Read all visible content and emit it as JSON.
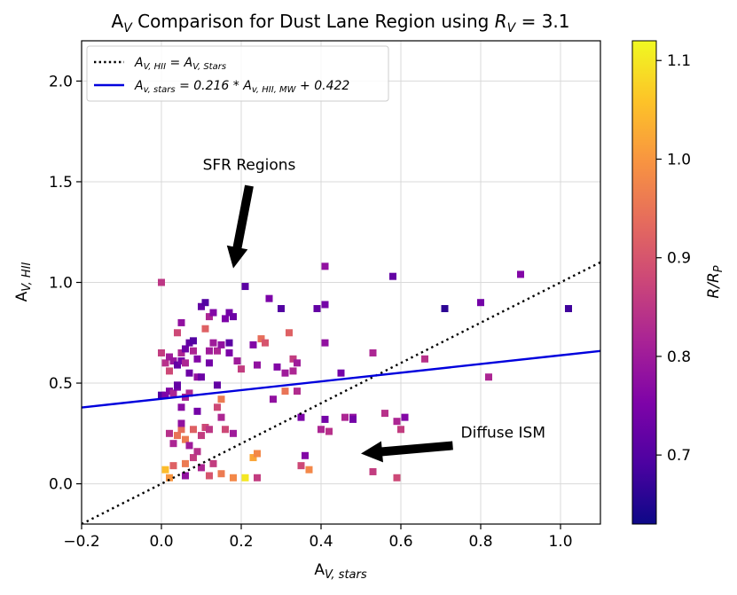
{
  "chart_data": {
    "type": "scatter",
    "title": "A_V Comparison for Dust Lane Region using R_V = 3.1",
    "title_parts": {
      "a": "A",
      "v": "V",
      "mid": " Comparison for Dust Lane Region using ",
      "r": "R",
      "rv_sub": "V",
      "eq": " = 3.1"
    },
    "xlabel": {
      "main": "A",
      "sub": "V, stars"
    },
    "ylabel": {
      "main": "A",
      "sub": "V, HII"
    },
    "xlim": [
      -0.2,
      1.1
    ],
    "ylim": [
      -0.2,
      2.2
    ],
    "xticks": [
      -0.2,
      0.0,
      0.2,
      0.4,
      0.6,
      0.8,
      1.0
    ],
    "xtick_labels": [
      "−0.2",
      "0.0",
      "0.2",
      "0.4",
      "0.6",
      "0.8",
      "1.0"
    ],
    "yticks": [
      0.0,
      0.5,
      1.0,
      1.5,
      2.0
    ],
    "ytick_labels": [
      "0.0",
      "0.5",
      "1.0",
      "1.5",
      "2.0"
    ],
    "grid": true,
    "legend_position": "top-left",
    "legend": [
      {
        "label": "A_V,HII = A_V,Stars",
        "style": "dotted",
        "color": "#000000",
        "text_main": "A",
        "text_sub": "V, HII",
        "text_eq": " = A",
        "text_sub2": "V, Stars"
      },
      {
        "label": "A_v,stars = 0.216 * A_v,HII,MW + 0.422",
        "style": "solid",
        "color": "#0000dd",
        "text_main": "A",
        "text_sub": "v, stars",
        "text_eq": " = 0.216 * A",
        "text_sub2": "v, HII, MW",
        "text_tail": " + 0.422"
      }
    ],
    "lines": [
      {
        "name": "one-to-one",
        "slope": 1.0,
        "intercept": 0.0,
        "style": "dotted",
        "color": "#000000"
      },
      {
        "name": "fit",
        "slope": 0.216,
        "intercept": 0.422,
        "style": "solid",
        "color": "#0000dd"
      }
    ],
    "colorbar": {
      "label_main": "R/R",
      "label_sub": "P",
      "range": [
        0.63,
        1.12
      ],
      "ticks": [
        0.7,
        0.8,
        0.9,
        1.0,
        1.1
      ],
      "tick_labels": [
        "0.7",
        "0.8",
        "0.9",
        "1.0",
        "1.1"
      ],
      "colormap": "plasma"
    },
    "annotations": [
      {
        "text": "SFR Regions",
        "text_xy": [
          0.22,
          1.56
        ],
        "arrow_from": [
          0.22,
          1.48
        ],
        "arrow_to": [
          0.18,
          1.07
        ]
      },
      {
        "text": "Diffuse ISM",
        "text_xy": [
          0.75,
          0.23
        ],
        "arrow_from": [
          0.73,
          0.19
        ],
        "arrow_to": [
          0.5,
          0.15
        ]
      }
    ],
    "points": [
      [
        0.0,
        1.0,
        0.85
      ],
      [
        0.0,
        0.65,
        0.86
      ],
      [
        0.01,
        0.6,
        0.84
      ],
      [
        0.02,
        0.63,
        0.8
      ],
      [
        0.0,
        0.44,
        0.7
      ],
      [
        0.01,
        0.44,
        0.75
      ],
      [
        0.02,
        0.46,
        0.76
      ],
      [
        0.03,
        0.45,
        0.82
      ],
      [
        0.04,
        0.48,
        0.74
      ],
      [
        0.04,
        0.49,
        0.72
      ],
      [
        0.03,
        0.61,
        0.79
      ],
      [
        0.04,
        0.59,
        0.72
      ],
      [
        0.05,
        0.61,
        0.74
      ],
      [
        0.05,
        0.65,
        0.82
      ],
      [
        0.04,
        0.75,
        0.88
      ],
      [
        0.05,
        0.8,
        0.78
      ],
      [
        0.06,
        0.67,
        0.73
      ],
      [
        0.06,
        0.6,
        0.82
      ],
      [
        0.07,
        0.7,
        0.72
      ],
      [
        0.08,
        0.71,
        0.7
      ],
      [
        0.07,
        0.55,
        0.73
      ],
      [
        0.06,
        0.43,
        0.81
      ],
      [
        0.07,
        0.45,
        0.82
      ],
      [
        0.05,
        0.38,
        0.77
      ],
      [
        0.08,
        0.66,
        0.82
      ],
      [
        0.09,
        0.62,
        0.76
      ],
      [
        0.09,
        0.53,
        0.78
      ],
      [
        0.1,
        0.53,
        0.73
      ],
      [
        0.1,
        0.88,
        0.72
      ],
      [
        0.11,
        0.9,
        0.7
      ],
      [
        0.12,
        0.83,
        0.82
      ],
      [
        0.11,
        0.77,
        0.92
      ],
      [
        0.12,
        0.66,
        0.8
      ],
      [
        0.12,
        0.6,
        0.74
      ],
      [
        0.13,
        0.7,
        0.8
      ],
      [
        0.14,
        0.66,
        0.82
      ],
      [
        0.15,
        0.69,
        0.78
      ],
      [
        0.14,
        0.49,
        0.72
      ],
      [
        0.15,
        0.42,
        0.96
      ],
      [
        0.16,
        0.82,
        0.75
      ],
      [
        0.17,
        0.85,
        0.74
      ],
      [
        0.18,
        0.83,
        0.73
      ],
      [
        0.17,
        0.7,
        0.71
      ],
      [
        0.17,
        0.65,
        0.75
      ],
      [
        0.19,
        0.61,
        0.8
      ],
      [
        0.2,
        0.57,
        0.86
      ],
      [
        0.21,
        0.98,
        0.71
      ],
      [
        0.23,
        0.69,
        0.76
      ],
      [
        0.24,
        0.59,
        0.78
      ],
      [
        0.25,
        0.72,
        0.94
      ],
      [
        0.26,
        0.7,
        0.9
      ],
      [
        0.27,
        0.92,
        0.75
      ],
      [
        0.29,
        0.58,
        0.76
      ],
      [
        0.3,
        0.87,
        0.7
      ],
      [
        0.31,
        0.46,
        0.95
      ],
      [
        0.32,
        0.75,
        0.92
      ],
      [
        0.31,
        0.55,
        0.8
      ],
      [
        0.33,
        0.62,
        0.86
      ],
      [
        0.33,
        0.56,
        0.82
      ],
      [
        0.34,
        0.6,
        0.8
      ],
      [
        0.35,
        0.33,
        0.75
      ],
      [
        0.34,
        0.46,
        0.83
      ],
      [
        0.28,
        0.42,
        0.78
      ],
      [
        0.39,
        0.87,
        0.72
      ],
      [
        0.41,
        0.89,
        0.74
      ],
      [
        0.41,
        0.7,
        0.78
      ],
      [
        0.41,
        1.08,
        0.78
      ],
      [
        0.45,
        0.55,
        0.74
      ],
      [
        0.46,
        0.33,
        0.82
      ],
      [
        0.48,
        0.33,
        0.78
      ],
      [
        0.48,
        0.32,
        0.74
      ],
      [
        0.53,
        0.65,
        0.82
      ],
      [
        0.56,
        0.35,
        0.84
      ],
      [
        0.59,
        0.31,
        0.82
      ],
      [
        0.6,
        0.27,
        0.86
      ],
      [
        0.61,
        0.33,
        0.76
      ],
      [
        0.58,
        1.03,
        0.72
      ],
      [
        0.66,
        0.62,
        0.84
      ],
      [
        0.71,
        0.87,
        0.66
      ],
      [
        0.8,
        0.9,
        0.74
      ],
      [
        0.82,
        0.53,
        0.82
      ],
      [
        0.9,
        1.04,
        0.76
      ],
      [
        1.02,
        0.87,
        0.68
      ],
      [
        0.36,
        0.14,
        0.76
      ],
      [
        0.4,
        0.27,
        0.82
      ],
      [
        0.41,
        0.32,
        0.74
      ],
      [
        0.42,
        0.26,
        0.84
      ],
      [
        0.35,
        0.09,
        0.88
      ],
      [
        0.37,
        0.07,
        0.98
      ],
      [
        0.53,
        0.06,
        0.86
      ],
      [
        0.59,
        0.03,
        0.88
      ],
      [
        0.01,
        0.07,
        1.05
      ],
      [
        0.02,
        0.03,
        1.0
      ],
      [
        0.03,
        0.09,
        0.92
      ],
      [
        0.04,
        0.24,
        0.95
      ],
      [
        0.03,
        0.2,
        0.82
      ],
      [
        0.02,
        0.25,
        0.84
      ],
      [
        0.05,
        0.27,
        0.94
      ],
      [
        0.06,
        0.22,
        0.96
      ],
      [
        0.07,
        0.19,
        0.8
      ],
      [
        0.06,
        0.1,
        0.96
      ],
      [
        0.08,
        0.13,
        0.86
      ],
      [
        0.09,
        0.16,
        0.84
      ],
      [
        0.1,
        0.24,
        0.86
      ],
      [
        0.11,
        0.28,
        0.88
      ],
      [
        0.12,
        0.27,
        0.85
      ],
      [
        0.1,
        0.08,
        0.82
      ],
      [
        0.12,
        0.04,
        0.9
      ],
      [
        0.13,
        0.1,
        0.86
      ],
      [
        0.14,
        0.38,
        0.88
      ],
      [
        0.15,
        0.33,
        0.82
      ],
      [
        0.16,
        0.27,
        0.88
      ],
      [
        0.15,
        0.05,
        0.96
      ],
      [
        0.18,
        0.25,
        0.8
      ],
      [
        0.18,
        0.03,
        0.98
      ],
      [
        0.21,
        0.03,
        1.1
      ],
      [
        0.23,
        0.13,
        1.02
      ],
      [
        0.24,
        0.03,
        0.86
      ],
      [
        0.24,
        0.15,
        0.98
      ],
      [
        0.06,
        0.04,
        0.78
      ],
      [
        0.08,
        0.27,
        0.92
      ],
      [
        0.09,
        0.36,
        0.74
      ],
      [
        0.02,
        0.56,
        0.88
      ],
      [
        0.13,
        0.85,
        0.76
      ],
      [
        0.05,
        0.3,
        0.78
      ]
    ]
  }
}
